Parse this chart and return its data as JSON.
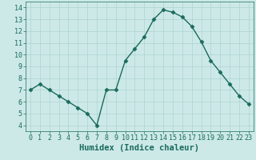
{
  "xlabel": "Humidex (Indice chaleur)",
  "x": [
    0,
    1,
    2,
    3,
    4,
    5,
    6,
    7,
    8,
    9,
    10,
    11,
    12,
    13,
    14,
    15,
    16,
    17,
    18,
    19,
    20,
    21,
    22,
    23
  ],
  "y": [
    7.0,
    7.5,
    7.0,
    6.5,
    6.0,
    5.5,
    5.0,
    4.0,
    7.0,
    7.0,
    9.5,
    10.5,
    11.5,
    13.0,
    13.8,
    13.6,
    13.2,
    12.4,
    11.1,
    9.5,
    8.5,
    7.5,
    6.5,
    5.8
  ],
  "line_color": "#1a6b5a",
  "marker": "D",
  "marker_size": 2.5,
  "bg_color": "#cce9e7",
  "grid_color": "#afd4d1",
  "tick_color": "#1a6b5a",
  "label_color": "#1a6b5a",
  "ylim": [
    3.5,
    14.5
  ],
  "xlim": [
    -0.5,
    23.5
  ],
  "yticks": [
    4,
    5,
    6,
    7,
    8,
    9,
    10,
    11,
    12,
    13,
    14
  ],
  "xticks": [
    0,
    1,
    2,
    3,
    4,
    5,
    6,
    7,
    8,
    9,
    10,
    11,
    12,
    13,
    14,
    15,
    16,
    17,
    18,
    19,
    20,
    21,
    22,
    23
  ],
  "xlabel_fontsize": 7.5,
  "tick_fontsize": 6.0,
  "line_width": 1.0
}
